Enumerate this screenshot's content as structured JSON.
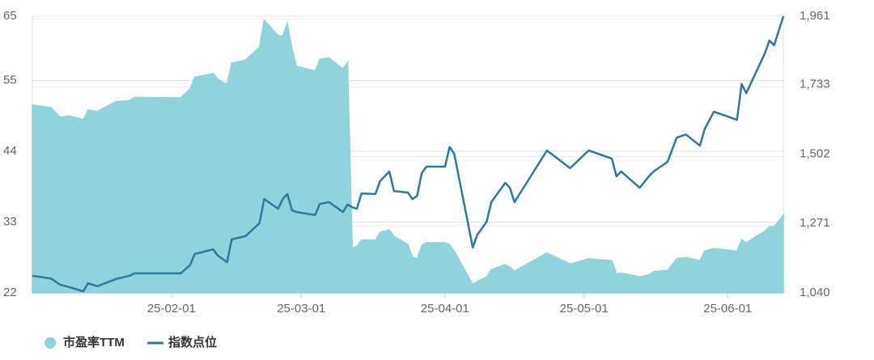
{
  "chart_data": {
    "type": "area_line",
    "x": [
      "25-01-02",
      "25-01-06",
      "25-01-08",
      "25-01-10",
      "25-01-13",
      "25-01-14",
      "25-01-16",
      "25-01-20",
      "25-01-23",
      "25-01-24",
      "25-02-03",
      "25-02-05",
      "25-02-06",
      "25-02-10",
      "25-02-11",
      "25-02-13",
      "25-02-14",
      "25-02-17",
      "25-02-20",
      "25-02-21",
      "25-02-24",
      "25-02-25",
      "25-02-26",
      "25-02-27",
      "25-02-28",
      "25-03-04",
      "25-03-05",
      "25-03-07",
      "25-03-10",
      "25-03-11",
      "25-03-12",
      "25-03-13",
      "25-03-14",
      "25-03-17",
      "25-03-18",
      "25-03-20",
      "25-03-21",
      "25-03-24",
      "25-03-25",
      "25-03-26",
      "25-03-27",
      "25-03-28",
      "25-04-01",
      "25-04-02",
      "25-04-03",
      "25-04-07",
      "25-04-08",
      "25-04-10",
      "25-04-11",
      "25-04-14",
      "25-04-15",
      "25-04-16",
      "25-04-23",
      "25-04-28",
      "25-05-02",
      "25-05-07",
      "25-05-08",
      "25-05-09",
      "25-05-13",
      "25-05-15",
      "25-05-16",
      "25-05-19",
      "25-05-21",
      "25-05-23",
      "25-05-26",
      "25-05-27",
      "25-05-29",
      "25-06-03",
      "25-06-04",
      "25-06-05",
      "25-06-09",
      "25-06-10",
      "25-06-11",
      "25-06-13"
    ],
    "series": [
      {
        "name": "市盈率TTM",
        "color": "#8fd3dc",
        "kind": "area",
        "values": [
          51.2,
          50.8,
          49.3,
          49.5,
          48.9,
          50.4,
          50.2,
          51.7,
          51.9,
          52.4,
          52.3,
          53.7,
          55.5,
          56.1,
          55.2,
          54.4,
          57.7,
          58.2,
          60.2,
          64.4,
          62.0,
          61.9,
          63.9,
          60.0,
          57.2,
          56.5,
          58.3,
          58.5,
          56.8,
          57.8,
          29.0,
          29.2,
          30.2,
          30.2,
          31.4,
          31.8,
          30.8,
          29.5,
          27.5,
          27.3,
          29.4,
          29.8,
          29.8,
          29.5,
          28.5,
          23.3,
          23.8,
          24.5,
          25.6,
          26.4,
          26.0,
          25.4,
          28.2,
          26.5,
          27.3,
          27.0,
          25.0,
          25.1,
          24.5,
          24.8,
          25.3,
          25.5,
          27.3,
          27.5,
          27.0,
          28.5,
          28.9,
          28.5,
          30.3,
          29.8,
          31.6,
          32.3,
          32.3,
          34.1
        ]
      },
      {
        "name": "指数点位",
        "color": "#2c7a9e",
        "kind": "line",
        "axis": "y2",
        "values": [
          1097,
          1088,
          1067,
          1059,
          1045,
          1072,
          1062,
          1086,
          1097,
          1105,
          1105,
          1132,
          1169,
          1185,
          1164,
          1142,
          1218,
          1229,
          1272,
          1352,
          1320,
          1352,
          1369,
          1315,
          1309,
          1299,
          1336,
          1342,
          1309,
          1334,
          1325,
          1320,
          1371,
          1369,
          1412,
          1444,
          1379,
          1374,
          1352,
          1363,
          1439,
          1460,
          1460,
          1525,
          1503,
          1191,
          1234,
          1277,
          1342,
          1406,
          1390,
          1342,
          1514,
          1455,
          1514,
          1487,
          1428,
          1444,
          1390,
          1428,
          1444,
          1476,
          1557,
          1567,
          1530,
          1584,
          1643,
          1616,
          1735,
          1705,
          1837,
          1880,
          1864,
          1961
        ]
      }
    ],
    "xlim": [
      "25-01-02",
      "25-06-13"
    ],
    "xticks": [
      "25-02-01",
      "25-03-01",
      "25-04-01",
      "25-05-01",
      "25-06-01"
    ],
    "ylim": [
      22,
      65
    ],
    "yticks": [
      22,
      33,
      44,
      55,
      65
    ],
    "y2lim": [
      1040,
      1961
    ],
    "y2ticks": [
      {
        "value": 1040,
        "label": "1,040"
      },
      {
        "value": 1271,
        "label": "1,271"
      },
      {
        "value": 1502,
        "label": "1,502"
      },
      {
        "value": 1733,
        "label": "1,733"
      },
      {
        "value": 1961,
        "label": "1,961"
      }
    ],
    "grid": true
  }
}
